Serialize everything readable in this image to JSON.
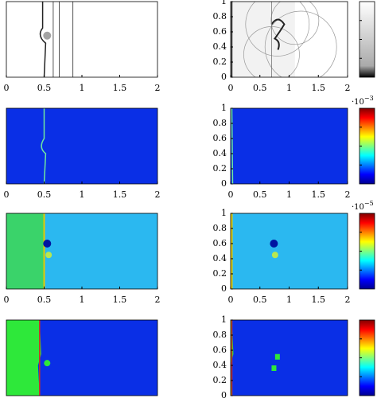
{
  "chart_data": [
    {
      "type": "field",
      "xlim": [
        0,
        2
      ],
      "xticks": [
        0,
        0.5,
        1,
        1.5,
        2
      ]
    },
    {
      "type": "field",
      "xlim": [
        0,
        2
      ],
      "xticks": [
        0,
        0.5,
        1,
        1.5,
        2
      ],
      "ylim": [
        0,
        1
      ],
      "yticks": [
        0,
        0.2,
        0.4,
        0.6,
        0.8,
        1
      ],
      "colormap": "gray"
    },
    {
      "type": "field",
      "xlim": [
        0,
        2
      ],
      "xticks": [
        0,
        0.5,
        1,
        1.5,
        2
      ]
    },
    {
      "type": "field",
      "xlim": [
        0,
        2
      ],
      "xticks": [
        0,
        0.5,
        1,
        1.5,
        2
      ],
      "ylim": [
        0,
        1
      ],
      "yticks": [
        0,
        0.2,
        0.4,
        0.6,
        0.8,
        1
      ],
      "colormap": "jet",
      "colorbar_scale": {
        "base": "·10",
        "exponent": "−3"
      }
    },
    {
      "type": "field",
      "xlim": [
        0,
        2
      ],
      "xticks": [
        0,
        0.5,
        1,
        1.5,
        2
      ]
    },
    {
      "type": "field",
      "xlim": [
        0,
        2
      ],
      "xticks": [
        0,
        0.5,
        1,
        1.5,
        2
      ],
      "ylim": [
        0,
        1
      ],
      "yticks": [
        0,
        0.2,
        0.4,
        0.6,
        0.8,
        1
      ],
      "colormap": "jet",
      "colorbar_scale": {
        "base": "·10",
        "exponent": "−5"
      }
    },
    {
      "type": "field",
      "xlim": [
        0,
        2
      ]
    },
    {
      "type": "field",
      "xlim": [
        0,
        2
      ],
      "ylim": [
        0,
        1
      ],
      "yticks": [
        0,
        0.2,
        0.4,
        0.6,
        0.8,
        1
      ],
      "colormap": "jet"
    }
  ]
}
